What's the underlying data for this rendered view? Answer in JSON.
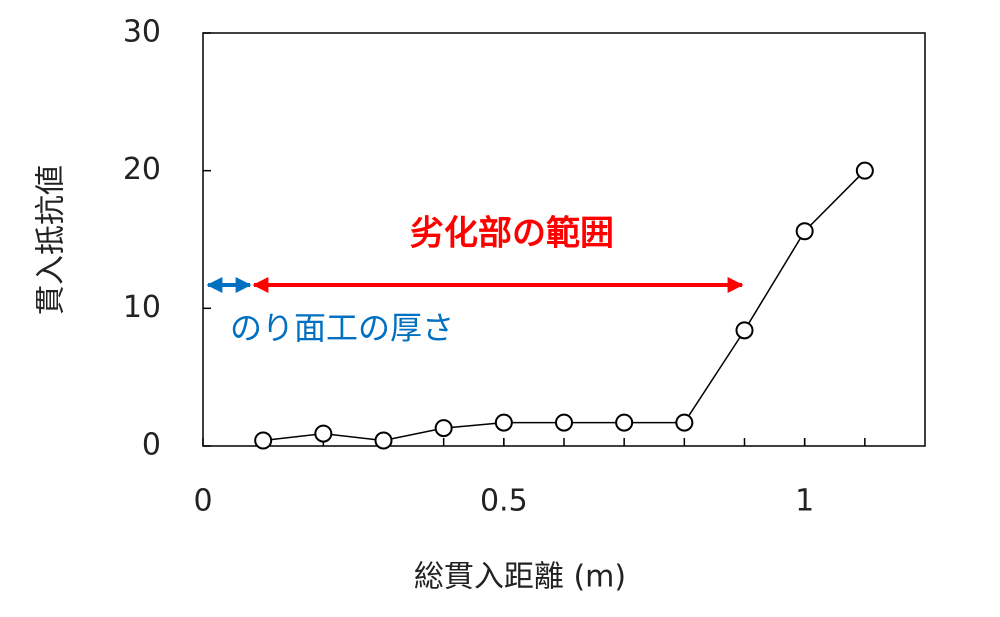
{
  "chart_data": {
    "type": "line",
    "x_label": "総貫入距離 (m)",
    "y_label": "貫入抵抗値",
    "x": [
      0.1,
      0.2,
      0.3,
      0.4,
      0.5,
      0.6,
      0.7,
      0.8,
      0.9,
      1.0,
      1.1
    ],
    "series": [
      {
        "name": "貫入抵抗値",
        "color": "#000000",
        "values": [
          0.4,
          0.9,
          0.4,
          1.3,
          1.7,
          1.7,
          1.7,
          1.7,
          8.4,
          15.6,
          20.0
        ]
      }
    ],
    "xlim": [
      0,
      1.2
    ],
    "xticks": [
      0,
      0.5,
      1
    ],
    "ylim": [
      0,
      30
    ],
    "yticks": [
      0,
      10,
      20,
      30
    ],
    "annotations": [
      {
        "text": "劣化部の範囲",
        "color": "#ff0000"
      },
      {
        "text": "のり面工の厚さ",
        "color": "#0070c0"
      }
    ]
  }
}
